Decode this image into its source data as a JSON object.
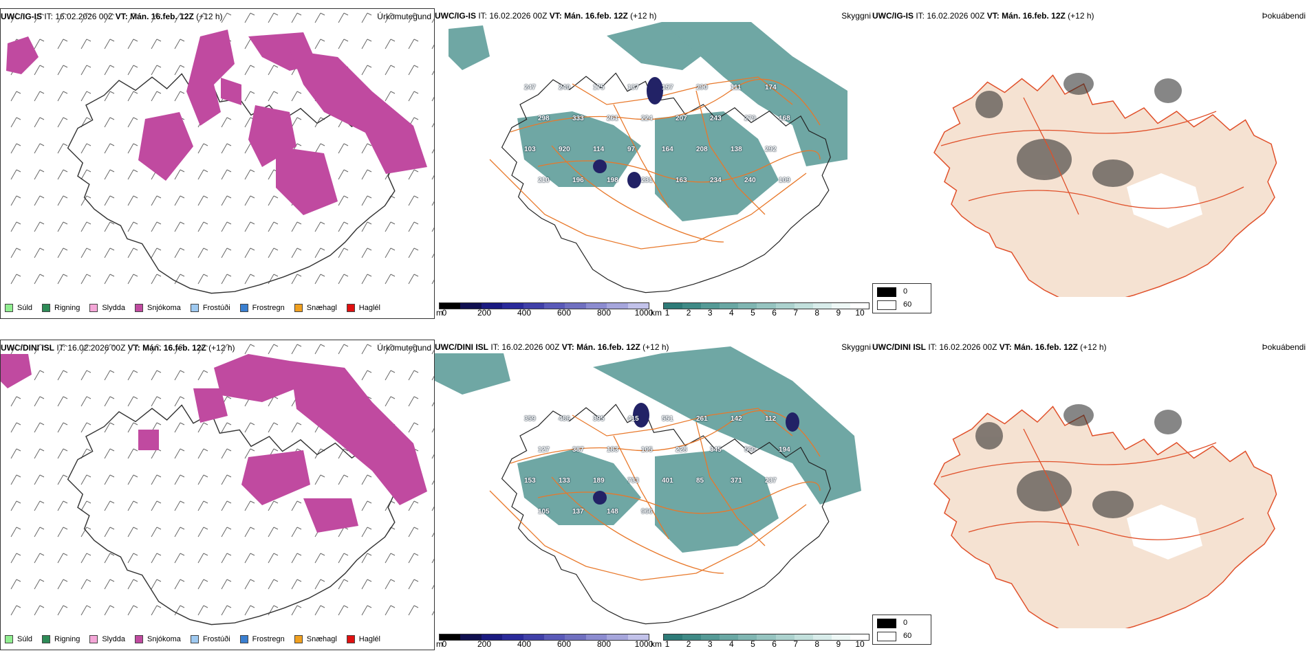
{
  "rows": [
    {
      "model": "UWC/IG-IS",
      "it_label": "IT:",
      "it_value": "16.02.2026 00Z",
      "vt_label": "VT:",
      "vt_value": "Mán. 16.feb. 12Z",
      "lead": "(+12 h)"
    },
    {
      "model": "UWC/DINI ISL",
      "it_label": "IT:",
      "it_value": "16.02.2026 00Z",
      "vt_label": "VT:",
      "vt_value": "Mán. 16.feb. 12Z",
      "lead": "(+12 h)"
    }
  ],
  "panel_titles": {
    "precip": "Úrkomutegund",
    "cloud": "Skyggni",
    "fog": "Þokuábendi"
  },
  "precip_legend": [
    {
      "label": "Súld",
      "color": "#90ee90"
    },
    {
      "label": "Rigning",
      "color": "#2e8b57"
    },
    {
      "label": "Slydda",
      "color": "#f4a6d7"
    },
    {
      "label": "Snjókoma",
      "color": "#c04aa0"
    },
    {
      "label": "Frostúði",
      "color": "#9ec9f0"
    },
    {
      "label": "Frostregn",
      "color": "#3a7fd0"
    },
    {
      "label": "Snæhagl",
      "color": "#f0a020"
    },
    {
      "label": "Haglél",
      "color": "#e01010"
    }
  ],
  "colorbar_height": {
    "unit": "m",
    "ticks": [
      "0",
      "200",
      "400",
      "600",
      "800",
      "1000"
    ],
    "colors": [
      "#000000",
      "#101050",
      "#1a1a80",
      "#2a2a9a",
      "#4040a8",
      "#5a5ab8",
      "#7070c0",
      "#8c8cd0",
      "#a6a6dc",
      "#c2c2ea"
    ]
  },
  "colorbar_visibility": {
    "unit": "km",
    "ticks": [
      "1",
      "2",
      "3",
      "4",
      "5",
      "6",
      "7",
      "8",
      "9",
      "10"
    ],
    "colors": [
      "#2e7b78",
      "#3f8a86",
      "#559a96",
      "#6aa8a4",
      "#80b6b2",
      "#96c4c0",
      "#acd2ce",
      "#c2e0dc",
      "#d8ecea",
      "#eef8f6",
      "#ffffff"
    ]
  },
  "fog_legend": {
    "low": "0",
    "high": "60"
  },
  "ceiling_labels_top": [
    "247",
    "240",
    "175",
    "137",
    "157",
    "290",
    "111",
    "174",
    "298",
    "333",
    "261",
    "224",
    "207",
    "243",
    "279",
    "168",
    "103",
    "920",
    "114",
    "97",
    "164",
    "208",
    "138",
    "292",
    "210",
    "196",
    "198",
    "231",
    "163",
    "234",
    "240",
    "109"
  ],
  "ceiling_labels_bottom": [
    "359",
    "486",
    "395",
    "415",
    "551",
    "261",
    "142",
    "112",
    "127",
    "387",
    "183",
    "105",
    "228",
    "345",
    "560",
    "194",
    "153",
    "133",
    "189",
    "733",
    "401",
    "85",
    "371",
    "237",
    "105",
    "137",
    "148",
    "966"
  ],
  "colors": {
    "snow": "#c04aa0",
    "cloud": "#3f8a86",
    "land": "#f5e2d2",
    "roads": "#e8782a",
    "fog_roads": "#e0502a"
  }
}
